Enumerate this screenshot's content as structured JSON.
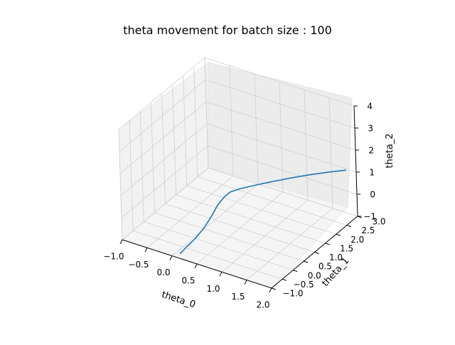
{
  "chart_data": {
    "type": "line3d",
    "title": "theta movement for batch size : 100",
    "xlabel": "theta_0",
    "ylabel": "theta_1",
    "zlabel": "theta_2",
    "xlim": [
      -1.0,
      2.0
    ],
    "ylim": [
      -1.0,
      3.0
    ],
    "zlim": [
      -1,
      4
    ],
    "xticks": [
      "−1.0",
      "−0.5",
      "0.0",
      "0.5",
      "1.0",
      "1.5",
      "2.0"
    ],
    "yticks": [
      "−1.0",
      "−0.5",
      "0.0",
      "0.5",
      "1.0",
      "1.5",
      "2.0",
      "2.5",
      "3.0"
    ],
    "zticks": [
      "−1",
      "0",
      "1",
      "2",
      "3",
      "4"
    ],
    "grid": true,
    "series": [
      {
        "color": "#1f77b4",
        "points": [
          [
            0.12,
            -0.9,
            -0.9
          ],
          [
            0.21,
            -0.78,
            -0.6
          ],
          [
            0.31,
            -0.62,
            -0.3
          ],
          [
            0.41,
            -0.42,
            0.1
          ],
          [
            0.48,
            -0.25,
            0.5
          ],
          [
            0.53,
            -0.05,
            0.9
          ],
          [
            0.58,
            0.15,
            1.15
          ],
          [
            0.63,
            0.32,
            1.28
          ],
          [
            0.72,
            0.55,
            1.3
          ],
          [
            0.88,
            0.95,
            1.27
          ],
          [
            1.05,
            1.35,
            1.23
          ],
          [
            1.22,
            1.75,
            1.18
          ],
          [
            1.4,
            2.15,
            1.12
          ],
          [
            1.62,
            2.6,
            1.05
          ],
          [
            1.82,
            2.95,
            1.0
          ]
        ]
      }
    ]
  }
}
